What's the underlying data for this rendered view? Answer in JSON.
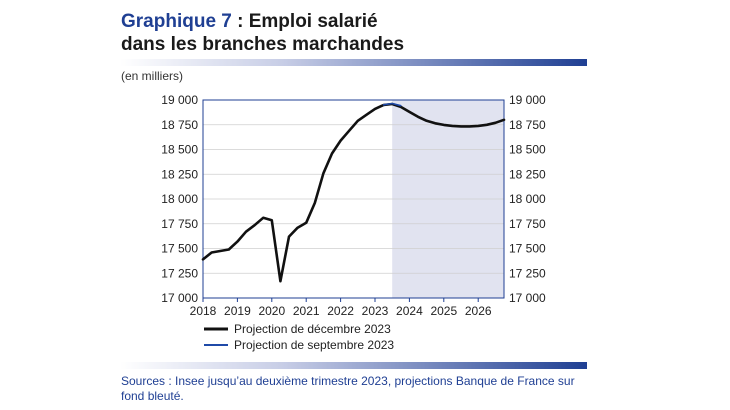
{
  "title": {
    "prefix": "Graphique 7",
    "rest": " : Emploi salarié",
    "line2": "dans les branches marchandes"
  },
  "unit_label": "(en milliers)",
  "sources": "Sources : Insee jusqu’au deuxième trimestre 2023, projections Banque de France sur fond bleuté.",
  "colors": {
    "accent": "#1f3f93",
    "projection_shade": "#e1e3f0",
    "series_dec": "#111111",
    "series_sep": "#1f4aa8"
  },
  "chart_data": {
    "type": "line",
    "xlim": [
      2018,
      2026.75
    ],
    "ylim": [
      17000,
      19000
    ],
    "y_ticks": [
      17000,
      17250,
      17500,
      17750,
      18000,
      18250,
      18500,
      18750,
      19000
    ],
    "y_tick_labels": [
      "17 000",
      "17 250",
      "17 500",
      "17 750",
      "18 000",
      "18 250",
      "18 500",
      "18 750",
      "19 000"
    ],
    "x_ticks": [
      2018,
      2019,
      2020,
      2021,
      2022,
      2023,
      2024,
      2025,
      2026
    ],
    "x_tick_labels": [
      "2018",
      "2019",
      "2020",
      "2021",
      "2022",
      "2023",
      "2024",
      "2025",
      "2026"
    ],
    "projection_start": 2023.5,
    "series": [
      {
        "name": "Projection de décembre 2023",
        "x": [
          2018.0,
          2018.25,
          2018.5,
          2018.75,
          2019.0,
          2019.25,
          2019.5,
          2019.75,
          2020.0,
          2020.25,
          2020.5,
          2020.75,
          2021.0,
          2021.25,
          2021.5,
          2021.75,
          2022.0,
          2022.25,
          2022.5,
          2022.75,
          2023.0,
          2023.25,
          2023.5,
          2023.75,
          2024.0,
          2024.25,
          2024.5,
          2024.75,
          2025.0,
          2025.25,
          2025.5,
          2025.75,
          2026.0,
          2026.25,
          2026.5,
          2026.75
        ],
        "values": [
          17390,
          17460,
          17475,
          17490,
          17570,
          17670,
          17735,
          17810,
          17785,
          17170,
          17620,
          17710,
          17760,
          17960,
          18260,
          18460,
          18590,
          18690,
          18790,
          18850,
          18910,
          18950,
          18960,
          18930,
          18880,
          18830,
          18790,
          18765,
          18748,
          18738,
          18733,
          18733,
          18738,
          18750,
          18770,
          18800
        ]
      },
      {
        "name": "Projection de septembre 2023",
        "x": [
          2023.25,
          2023.5,
          2023.75
        ],
        "values": [
          18952,
          18965,
          18942
        ]
      }
    ]
  }
}
